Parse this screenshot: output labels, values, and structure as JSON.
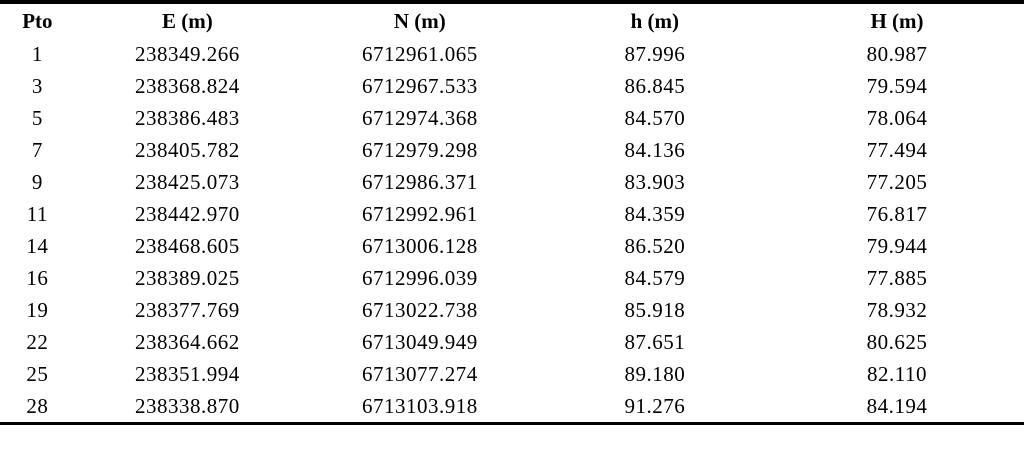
{
  "table": {
    "columns": [
      "Pto",
      "E (m)",
      "N (m)",
      "h (m)",
      "H (m)"
    ],
    "rows": [
      [
        "1",
        "238349.266",
        "6712961.065",
        "87.996",
        "80.987"
      ],
      [
        "3",
        "238368.824",
        "6712967.533",
        "86.845",
        "79.594"
      ],
      [
        "5",
        "238386.483",
        "6712974.368",
        "84.570",
        "78.064"
      ],
      [
        "7",
        "238405.782",
        "6712979.298",
        "84.136",
        "77.494"
      ],
      [
        "9",
        "238425.073",
        "6712986.371",
        "83.903",
        "77.205"
      ],
      [
        "11",
        "238442.970",
        "6712992.961",
        "84.359",
        "76.817"
      ],
      [
        "14",
        "238468.605",
        "6713006.128",
        "86.520",
        "79.944"
      ],
      [
        "16",
        "238389.025",
        "6712996.039",
        "84.579",
        "77.885"
      ],
      [
        "19",
        "238377.769",
        "6713022.738",
        "85.918",
        "78.932"
      ],
      [
        "22",
        "238364.662",
        "6713049.949",
        "87.651",
        "80.625"
      ],
      [
        "25",
        "238351.994",
        "6713077.274",
        "89.180",
        "82.110"
      ],
      [
        "28",
        "238338.870",
        "6713103.918",
        "91.276",
        "84.194"
      ]
    ]
  },
  "colors": {
    "text": "#000000",
    "background": "#ffffff",
    "rule": "#000000"
  }
}
